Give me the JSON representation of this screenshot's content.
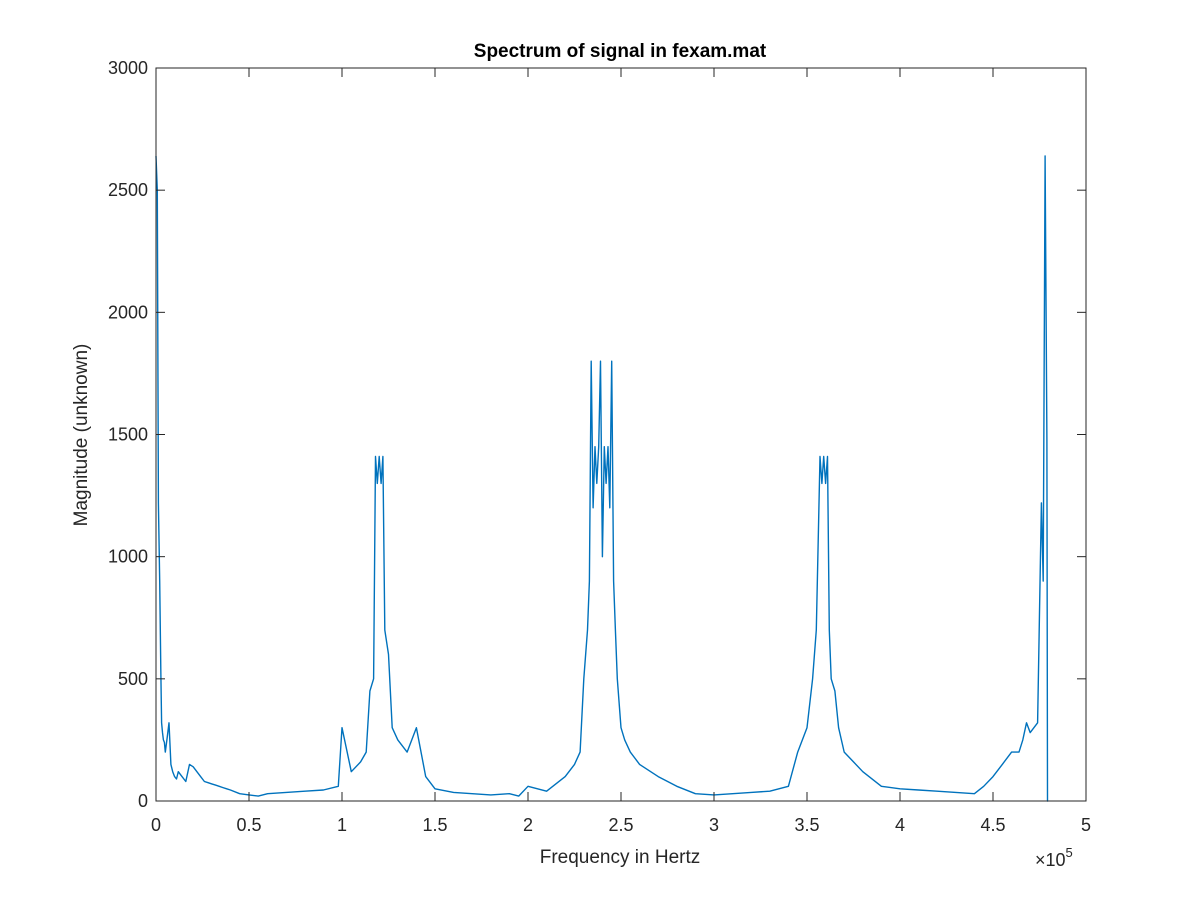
{
  "figure": {
    "background": "#ffffff",
    "axes_color": "#262626",
    "line_color": "#0072BD"
  },
  "chart_data": {
    "type": "line",
    "title": "Spectrum of signal in fexam.mat",
    "xlabel": "Frequency in Hertz",
    "ylabel": "Magnitude (unknown)",
    "xlim": [
      0,
      500000
    ],
    "ylim": [
      0,
      3000
    ],
    "x_ticks": [
      0,
      50000,
      100000,
      150000,
      200000,
      250000,
      300000,
      350000,
      400000,
      450000,
      500000
    ],
    "x_tick_labels": [
      "0",
      "0.5",
      "1",
      "1.5",
      "2",
      "2.5",
      "3",
      "3.5",
      "4",
      "4.5",
      "5"
    ],
    "x_exponent_base": "×10",
    "x_exponent_power": "5",
    "y_ticks": [
      0,
      500,
      1000,
      1500,
      2000,
      2500,
      3000
    ],
    "y_tick_labels": [
      "0",
      "500",
      "1000",
      "1500",
      "2000",
      "2500",
      "3000"
    ],
    "grid": false,
    "legend": "none",
    "series": [
      {
        "x": [
          0,
          700,
          1300,
          2000,
          2600,
          3000,
          3500,
          4000,
          4500,
          5000,
          6000,
          7000,
          8000,
          9000,
          10000,
          11000,
          12000,
          14000,
          16000,
          18000,
          20000,
          22000,
          24000,
          26000,
          28000,
          30000,
          32000,
          34000,
          36000,
          38000,
          40000,
          45000,
          50000,
          55000,
          60000,
          70000,
          80000,
          90000,
          98000,
          100000,
          105000,
          110000,
          113000,
          115000,
          117000,
          118000,
          119000,
          120000,
          121000,
          122000,
          123000,
          125000,
          127000,
          130000,
          135000,
          140000,
          145000,
          150000,
          160000,
          170000,
          180000,
          190000,
          195000,
          200000,
          210000,
          220000,
          225000,
          228000,
          230000,
          232000,
          233000,
          234000,
          235000,
          236000,
          237000,
          238000,
          239000,
          240000,
          241000,
          242000,
          243000,
          244000,
          245000,
          246000,
          247000,
          248000,
          250000,
          252000,
          255000,
          260000,
          270000,
          280000,
          290000,
          300000,
          310000,
          320000,
          330000,
          340000,
          345000,
          350000,
          353000,
          355000,
          357000,
          358000,
          359000,
          360000,
          361000,
          362000,
          363000,
          365000,
          367000,
          370000,
          375000,
          380000,
          390000,
          400000,
          410000,
          420000,
          430000,
          440000,
          445000,
          450000,
          455000,
          460000,
          464000,
          466000,
          468000,
          470000,
          472000,
          474000,
          476000,
          477000,
          478000,
          479000,
          479300,
          479600
        ],
        "values": [
          2640,
          2500,
          1220,
          900,
          540,
          320,
          280,
          250,
          240,
          200,
          260,
          320,
          150,
          120,
          100,
          90,
          120,
          100,
          80,
          150,
          140,
          120,
          100,
          80,
          75,
          70,
          65,
          60,
          55,
          50,
          45,
          30,
          25,
          20,
          30,
          35,
          40,
          45,
          60,
          300,
          120,
          160,
          200,
          450,
          500,
          1410,
          1300,
          1410,
          1300,
          1410,
          700,
          600,
          300,
          250,
          200,
          300,
          100,
          50,
          35,
          30,
          25,
          30,
          20,
          60,
          40,
          100,
          150,
          200,
          500,
          700,
          900,
          1800,
          1200,
          1450,
          1300,
          1450,
          1800,
          1000,
          1450,
          1300,
          1450,
          1200,
          1800,
          900,
          700,
          500,
          300,
          250,
          200,
          150,
          100,
          60,
          30,
          25,
          30,
          35,
          40,
          60,
          200,
          300,
          500,
          700,
          1410,
          1300,
          1410,
          1300,
          1410,
          700,
          500,
          450,
          300,
          200,
          160,
          120,
          60,
          50,
          45,
          40,
          35,
          30,
          60,
          100,
          150,
          200,
          200,
          250,
          320,
          280,
          300,
          320,
          1220,
          900,
          2640,
          1480,
          0,
          0
        ]
      }
    ]
  }
}
